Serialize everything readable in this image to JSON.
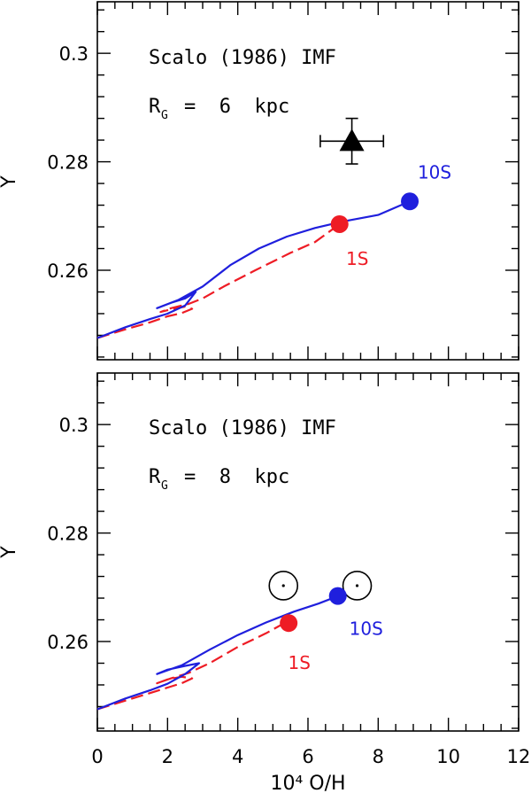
{
  "colors": {
    "red": "#ee1c25",
    "blue": "#1f1fdd",
    "black": "#000000"
  },
  "xaxis": {
    "label": "10⁴ O/H",
    "range": [
      0,
      12
    ],
    "ticks": [
      "0",
      "2",
      "4",
      "6",
      "8",
      "10",
      "12"
    ]
  },
  "chart_data": [
    {
      "type": "line",
      "ylabel": "Y",
      "xlim": [
        0,
        12
      ],
      "ylim": [
        0.2435,
        0.3095
      ],
      "yticks": [
        "0.26",
        "0.28",
        "0.3"
      ],
      "annotations": {
        "imf_text": "Scalo (1986) IMF",
        "rg_main": "R",
        "rg_sub": "G",
        "rg_value": "=  6  kpc"
      },
      "series": [
        {
          "name": "1S",
          "color": "#ee1c25",
          "dash": true,
          "x": [
            0,
            0.8,
            1.5,
            2.0,
            2.4,
            2.7,
            2.5,
            2.1,
            1.8,
            2.1,
            2.6,
            3.0,
            3.6,
            4.5,
            5.5,
            6.2,
            6.9
          ],
          "y": [
            0.2475,
            0.2491,
            0.2504,
            0.2515,
            0.2521,
            0.2529,
            0.2533,
            0.2528,
            0.2523,
            0.253,
            0.2538,
            0.2548,
            0.257,
            0.26,
            0.2632,
            0.2652,
            0.2685
          ]
        },
        {
          "name": "10S",
          "color": "#1f1fdd",
          "dash": false,
          "x": [
            0,
            0.8,
            1.5,
            2.0,
            2.5,
            2.8,
            2.5,
            2.1,
            1.7,
            2.3,
            3.0,
            3.8,
            4.6,
            5.4,
            6.2,
            7.0,
            8.0,
            8.9
          ],
          "y": [
            0.2475,
            0.2495,
            0.251,
            0.252,
            0.2535,
            0.256,
            0.2548,
            0.254,
            0.253,
            0.2545,
            0.257,
            0.261,
            0.264,
            0.2662,
            0.2678,
            0.269,
            0.2702,
            0.2727
          ]
        }
      ],
      "points": [
        {
          "label": "1S",
          "x": 6.9,
          "y": 0.2685,
          "color": "#ee1c25"
        },
        {
          "label": "10S",
          "x": 8.9,
          "y": 0.2727,
          "color": "#1f1fdd"
        }
      ],
      "observed": {
        "x": 7.25,
        "y": 0.2838,
        "xerr": 0.9,
        "yerr": 0.0042
      }
    },
    {
      "type": "line",
      "ylabel": "Y",
      "xlim": [
        0,
        12
      ],
      "ylim": [
        0.2435,
        0.3095
      ],
      "yticks": [
        "0.26",
        "0.28",
        "0.3"
      ],
      "annotations": {
        "imf_text": "Scalo (1986) IMF",
        "rg_main": "R",
        "rg_sub": "G",
        "rg_value": "=  8  kpc"
      },
      "series": [
        {
          "name": "1S",
          "color": "#ee1c25",
          "dash": true,
          "x": [
            0,
            0.8,
            1.5,
            2.0,
            2.4,
            2.7,
            2.4,
            2.0,
            1.7,
            2.1,
            2.6,
            3.2,
            4.0,
            4.8,
            5.5
          ],
          "y": [
            0.2475,
            0.2491,
            0.2505,
            0.2515,
            0.2523,
            0.2532,
            0.2535,
            0.253,
            0.2523,
            0.2532,
            0.2542,
            0.256,
            0.259,
            0.2615,
            0.264
          ]
        },
        {
          "name": "10S",
          "color": "#1f1fdd",
          "dash": false,
          "x": [
            0,
            0.8,
            1.5,
            2.0,
            2.5,
            2.9,
            2.5,
            2.0,
            1.7,
            2.4,
            3.2,
            4.0,
            4.8,
            5.6,
            6.3,
            6.9
          ],
          "y": [
            0.2475,
            0.2495,
            0.251,
            0.2522,
            0.254,
            0.256,
            0.2555,
            0.2548,
            0.254,
            0.2556,
            0.2585,
            0.2612,
            0.2635,
            0.2655,
            0.267,
            0.2685
          ]
        }
      ],
      "points": [
        {
          "label": "1S",
          "x": 5.45,
          "y": 0.2634,
          "color": "#ee1c25"
        },
        {
          "label": "10S",
          "x": 6.85,
          "y": 0.2684,
          "color": "#1f1fdd"
        }
      ],
      "suns": [
        {
          "x": 5.3,
          "y": 0.2703
        },
        {
          "x": 7.4,
          "y": 0.2703
        }
      ]
    }
  ]
}
